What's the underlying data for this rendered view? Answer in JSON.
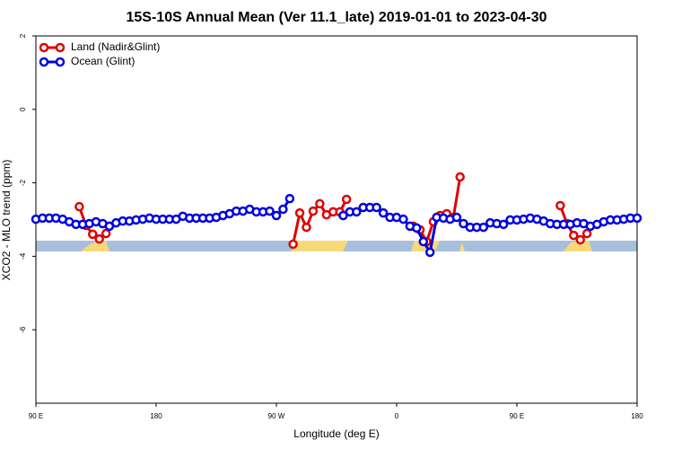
{
  "chart_data": {
    "type": "line",
    "title": "15S-10S Annual Mean (Ver 11.1_late)   2019-01-01 to 2023-04-30",
    "xlabel": "Longitude (deg E)",
    "ylabel": "XCO2 - MLO trend (ppm)",
    "xlim": [
      90,
      540
    ],
    "ylim": [
      -8,
      2
    ],
    "xticks": [
      {
        "value": 90,
        "label": "90 E"
      },
      180,
      {
        "value": 270,
        "label": "90 W"
      },
      {
        "value": 360,
        "label": "0"
      },
      {
        "value": 450,
        "label": "90 E"
      },
      {
        "value": 540,
        "label": "180"
      }
    ],
    "yticks": [
      2,
      0,
      -2,
      -4,
      -6
    ],
    "legend": "upper left",
    "series": [
      {
        "name": "Land (Nadir&Glint)",
        "color": "#e00000",
        "x": [
          122.5,
          127.5,
          132.5,
          137.5,
          142.5,
          210,
          282.5,
          287.5,
          292.5,
          297.5,
          302.5,
          307.5,
          312.5,
          317.5,
          322.5,
          350,
          372.5,
          377.5,
          382.5,
          387.5,
          392.5,
          397.5,
          402.5,
          407.5,
          450,
          482.5,
          487.5,
          492.5,
          497.5,
          502.5
        ],
        "values": [
          -2.65,
          -3.16,
          -3.4,
          -3.53,
          -3.38,
          null,
          -3.67,
          -2.82,
          -3.21,
          -2.77,
          -2.57,
          -2.87,
          -2.79,
          -2.79,
          -2.45,
          null,
          -3.18,
          -3.28,
          -3.6,
          -3.06,
          -2.89,
          -2.84,
          -2.94,
          -1.84,
          null,
          -2.62,
          -3.11,
          -3.43,
          -3.55,
          -3.38
        ]
      },
      {
        "name": "Ocean (Glint)",
        "color": "#0000e0",
        "x": [
          90,
          95,
          100,
          105,
          110,
          115,
          120,
          125,
          130,
          135,
          140,
          145,
          150,
          155,
          160,
          165,
          170,
          175,
          180,
          185,
          190,
          195,
          200,
          205,
          210,
          215,
          220,
          225,
          230,
          235,
          240,
          245,
          250,
          255,
          260,
          265,
          270,
          275,
          280,
          300,
          320,
          325,
          330,
          335,
          340,
          345,
          350,
          355,
          360,
          365,
          370,
          375,
          380,
          385,
          390,
          395,
          400,
          405,
          410,
          415,
          420,
          425,
          430,
          435,
          440,
          445,
          450,
          455,
          460,
          465,
          470,
          475,
          480,
          485,
          490,
          495,
          500,
          505,
          510,
          515,
          520,
          525,
          530,
          535,
          540
        ],
        "values": [
          -2.99,
          -2.96,
          -2.96,
          -2.96,
          -2.99,
          -3.06,
          -3.13,
          -3.13,
          -3.11,
          -3.06,
          -3.11,
          -3.18,
          -3.09,
          -3.04,
          -3.04,
          -3.01,
          -2.99,
          -2.96,
          -2.99,
          -2.99,
          -2.99,
          -2.99,
          -2.91,
          -2.96,
          -2.96,
          -2.96,
          -2.96,
          -2.94,
          -2.89,
          -2.84,
          -2.77,
          -2.77,
          -2.72,
          -2.79,
          -2.79,
          -2.77,
          -2.89,
          -2.72,
          -2.43,
          null,
          -2.89,
          -2.79,
          -2.79,
          -2.67,
          -2.67,
          -2.67,
          -2.82,
          -2.94,
          -2.94,
          -2.99,
          -3.18,
          -3.23,
          -3.6,
          -3.89,
          -2.94,
          -2.96,
          -2.99,
          -2.94,
          -3.11,
          -3.21,
          -3.21,
          -3.21,
          -3.09,
          -3.11,
          -3.13,
          -3.01,
          -3.01,
          -2.99,
          -2.96,
          -2.99,
          -3.04,
          -3.11,
          -3.13,
          -3.13,
          -3.13,
          -3.09,
          -3.11,
          -3.18,
          -3.13,
          -3.06,
          -3.01,
          -3.01,
          -2.99,
          -2.96,
          -2.96
        ]
      }
    ]
  }
}
